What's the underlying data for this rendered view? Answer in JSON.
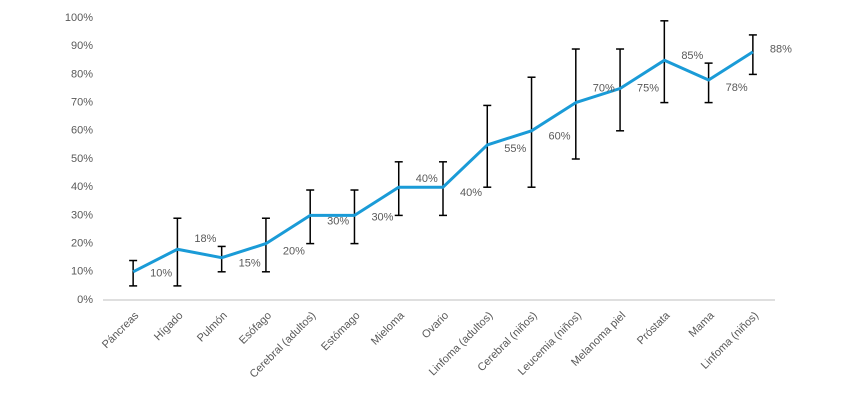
{
  "chart_data": {
    "type": "line",
    "categories": [
      "Páncreas",
      "Hígado",
      "Pulmón",
      "Esófago",
      "Cerebral (adultos)",
      "Estómago",
      "Mieloma",
      "Ovario",
      "Linfoma (adultos)",
      "Cerebral (niños)",
      "Leucemia (niños)",
      "Melanoma piel",
      "Próstata",
      "Mama",
      "Linfoma (niños)"
    ],
    "series": [
      {
        "color": "#1a9bd7",
        "values": [
          10,
          18,
          15,
          20,
          30,
          30,
          40,
          40,
          55,
          60,
          70,
          75,
          85,
          78,
          88
        ],
        "value_labels": [
          "10%",
          "18%",
          "15%",
          "20%",
          "30%",
          "30%",
          "40%",
          "40%",
          "55%",
          "60%",
          "70%",
          "75%",
          "85%",
          "78%",
          "88%"
        ],
        "lower": [
          5,
          5,
          10,
          10,
          20,
          20,
          30,
          30,
          40,
          40,
          50,
          60,
          70,
          70,
          80
        ],
        "upper": [
          14,
          29,
          19,
          29,
          39,
          39,
          49,
          49,
          69,
          79,
          89,
          89,
          99,
          84,
          94
        ]
      }
    ],
    "ylim": [
      0,
      100
    ],
    "yticks": [
      {
        "value": 0,
        "label": "0%"
      },
      {
        "value": 10,
        "label": "10%"
      },
      {
        "value": 20,
        "label": "20%"
      },
      {
        "value": 30,
        "label": "30%"
      },
      {
        "value": 40,
        "label": "40%"
      },
      {
        "value": 50,
        "label": "50%"
      },
      {
        "value": 60,
        "label": "60%"
      },
      {
        "value": 70,
        "label": "70%"
      },
      {
        "value": 80,
        "label": "80%"
      },
      {
        "value": 90,
        "label": "90%"
      },
      {
        "value": 100,
        "label": "100%"
      }
    ],
    "grid": false
  }
}
